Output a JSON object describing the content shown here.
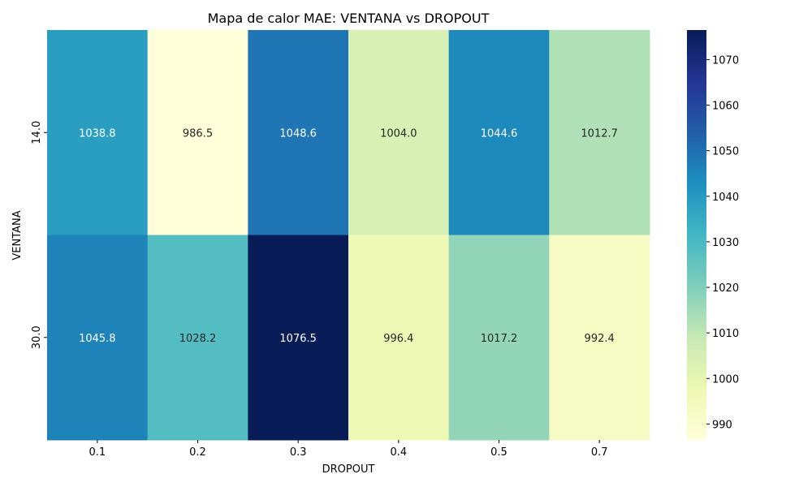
{
  "chart_data": {
    "type": "heatmap",
    "title": "Mapa de calor MAE: VENTANA vs DROPOUT",
    "xlabel": "DROPOUT",
    "ylabel": "VENTANA",
    "x_categories": [
      "0.1",
      "0.2",
      "0.3",
      "0.4",
      "0.5",
      "0.7"
    ],
    "y_categories": [
      "14.0",
      "30.0"
    ],
    "values": [
      [
        1038.8,
        986.5,
        1048.6,
        1004.0,
        1044.6,
        1012.7
      ],
      [
        1045.8,
        1028.2,
        1076.5,
        996.4,
        1017.2,
        992.4
      ]
    ],
    "value_labels": [
      [
        "1038.8",
        "986.5",
        "1048.6",
        "1004.0",
        "1044.6",
        "1012.7"
      ],
      [
        "1045.8",
        "1028.2",
        "1076.5",
        "996.4",
        "1017.2",
        "992.4"
      ]
    ],
    "colormap": "YlGnBu",
    "colorbar": {
      "range": [
        986.5,
        1076.5
      ],
      "ticks": [
        990,
        1000,
        1010,
        1020,
        1030,
        1040,
        1050,
        1060,
        1070
      ],
      "tick_labels": [
        "990",
        "1000",
        "1010",
        "1020",
        "1030",
        "1040",
        "1050",
        "1060",
        "1070"
      ]
    },
    "colormap_stops": [
      "#ffffd9",
      "#edf8b1",
      "#c7e9b4",
      "#7fcdbb",
      "#41b6c4",
      "#1d91c0",
      "#225ea8",
      "#253494",
      "#081d58"
    ]
  }
}
